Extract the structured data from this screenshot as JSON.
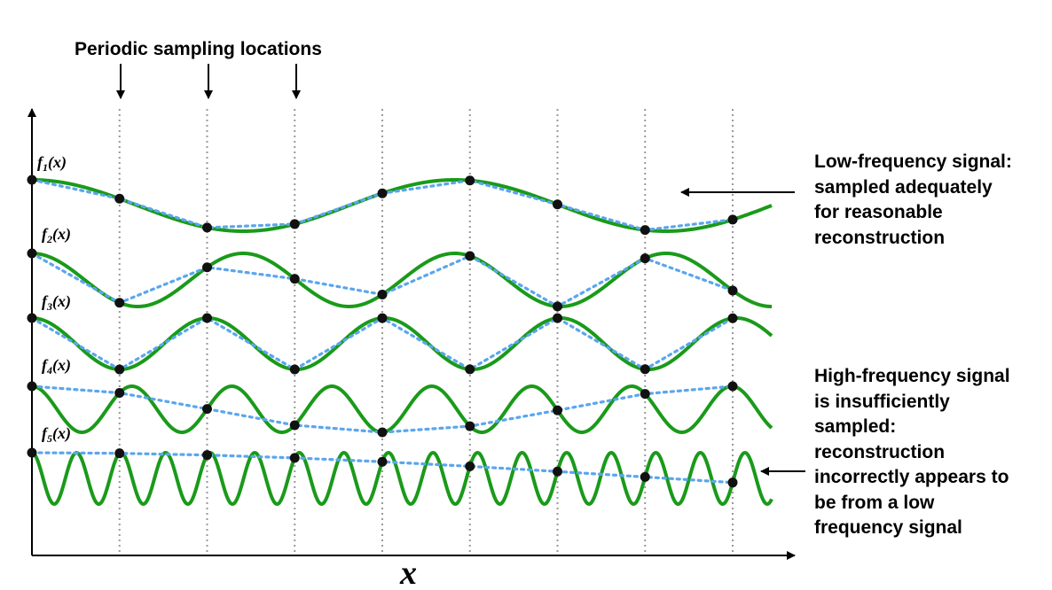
{
  "title": "Periodic sampling locations",
  "x_axis_label": "x",
  "functions": [
    {
      "label_main": "f",
      "label_sub": "1",
      "label_arg": "(x)",
      "cycles": 1.75
    },
    {
      "label_main": "f",
      "label_sub": "2",
      "label_arg": "(x)",
      "cycles": 3.5
    },
    {
      "label_main": "f",
      "label_sub": "3",
      "label_arg": "(x)",
      "cycles": 4.2
    },
    {
      "label_main": "f",
      "label_sub": "4",
      "label_arg": "(x)",
      "cycles": 7.4
    },
    {
      "label_main": "f",
      "label_sub": "5",
      "label_arg": "(x)",
      "cycles": 16.6
    }
  ],
  "notes": {
    "low_frequency": [
      "Low-frequency signal:",
      "sampled adequately",
      "for reasonable",
      "reconstruction"
    ],
    "high_frequency": [
      "High-frequency signal",
      "is insufficiently",
      "sampled:",
      "reconstruction",
      "incorrectly appears to",
      "be from a low",
      "frequency signal"
    ]
  },
  "colors": {
    "signal": "#1a9a1a",
    "reconstruction": "#5aa6ee",
    "sample_points": "#111111",
    "sampling_lines": "#999999"
  }
}
